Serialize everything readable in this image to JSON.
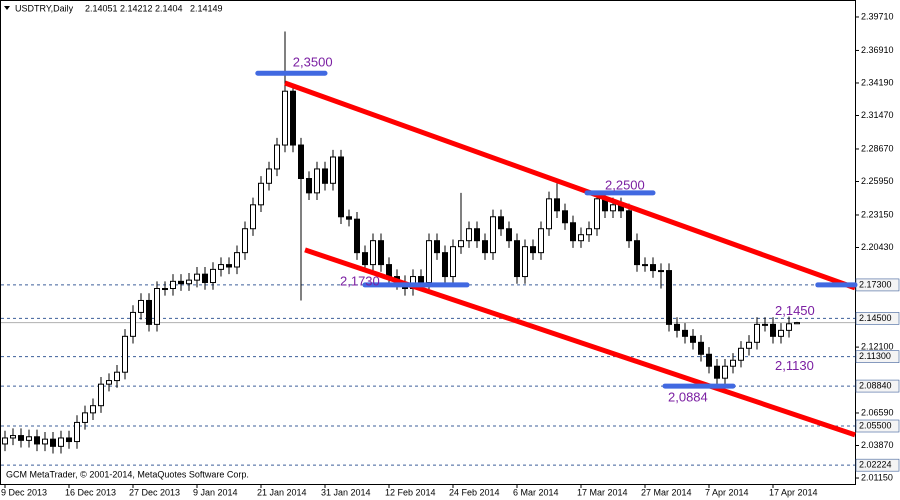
{
  "chart_data": {
    "type": "candlestick",
    "title": "USDTRY,Daily",
    "footer": "GCM MetaTrader, © 2001-2014, MetaQuotes Software Corp.",
    "categories": [
      "9 Dec 2013",
      null,
      null,
      null,
      null,
      null,
      null,
      null,
      "16 Dec 2013",
      null,
      null,
      null,
      null,
      null,
      null,
      null,
      "27 Dec 2013",
      null,
      null,
      null,
      null,
      null,
      null,
      null,
      "9 Jan 2014",
      null,
      null,
      null,
      null,
      null,
      null,
      null,
      "21 Jan 2014",
      null,
      null,
      null,
      null,
      null,
      null,
      null,
      "31 Jan 2014",
      null,
      null,
      null,
      null,
      null,
      null,
      null,
      "12 Feb 2014",
      null,
      null,
      null,
      null,
      null,
      null,
      null,
      "24 Feb 2014",
      null,
      null,
      null,
      null,
      null,
      null,
      null,
      "6 Mar 2014",
      null,
      null,
      null,
      null,
      null,
      null,
      null,
      "17 Mar 2014",
      null,
      null,
      null,
      null,
      null,
      null,
      null,
      "27 Mar 2014",
      null,
      null,
      null,
      null,
      null,
      null,
      null,
      "7 Apr 2014",
      null,
      null,
      null,
      null,
      null,
      null,
      null,
      "17 Apr 2014",
      null,
      null,
      null
    ],
    "open": [
      2.04,
      2.045,
      2.047,
      2.043,
      2.046,
      2.04,
      2.044,
      2.038,
      2.045,
      2.042,
      2.058,
      2.066,
      2.072,
      2.09,
      2.093,
      2.1,
      2.13,
      2.15,
      2.16,
      2.14,
      2.17,
      2.17,
      2.176,
      2.174,
      2.177,
      2.182,
      2.175,
      2.186,
      2.19,
      2.188,
      2.2,
      2.22,
      2.24,
      2.258,
      2.27,
      2.29,
      2.335,
      2.29,
      2.262,
      2.25,
      2.27,
      2.258,
      2.28,
      2.23,
      2.228,
      2.2,
      2.19,
      2.21,
      2.19,
      2.18,
      2.175,
      2.17,
      2.18,
      2.175,
      2.21,
      2.2,
      2.18,
      2.205,
      2.21,
      2.22,
      2.21,
      2.2,
      2.23,
      2.22,
      2.21,
      2.18,
      2.205,
      2.2,
      2.22,
      2.245,
      2.235,
      2.225,
      2.21,
      2.215,
      2.22,
      2.245,
      2.235,
      2.24,
      2.235,
      2.21,
      2.19,
      2.19,
      2.185,
      2.185,
      2.14,
      2.135,
      2.13,
      2.125,
      2.115,
      2.105,
      2.095,
      2.105,
      2.11,
      2.12,
      2.125,
      2.14,
      2.14,
      2.13,
      2.135,
      2.14051
    ],
    "high": [
      2.051,
      2.053,
      2.053,
      2.052,
      2.052,
      2.05,
      2.05,
      2.051,
      2.051,
      2.064,
      2.072,
      2.078,
      2.096,
      2.099,
      2.106,
      2.136,
      2.156,
      2.166,
      2.166,
      2.176,
      2.176,
      2.182,
      2.182,
      2.183,
      2.188,
      2.188,
      2.192,
      2.196,
      2.196,
      2.206,
      2.226,
      2.246,
      2.264,
      2.276,
      2.296,
      2.385,
      2.341,
      2.296,
      2.268,
      2.276,
      2.276,
      2.286,
      2.286,
      2.236,
      2.234,
      2.206,
      2.216,
      2.216,
      2.196,
      2.186,
      2.181,
      2.186,
      2.186,
      2.216,
      2.216,
      2.206,
      2.211,
      2.25,
      2.226,
      2.226,
      2.216,
      2.236,
      2.236,
      2.226,
      2.216,
      2.211,
      2.211,
      2.226,
      2.251,
      2.258,
      2.241,
      2.231,
      2.221,
      2.226,
      2.251,
      2.251,
      2.246,
      2.246,
      2.241,
      2.216,
      2.196,
      2.196,
      2.191,
      2.191,
      2.146,
      2.141,
      2.136,
      2.131,
      2.121,
      2.111,
      2.111,
      2.116,
      2.126,
      2.131,
      2.146,
      2.146,
      2.146,
      2.141,
      2.1465,
      2.14212
    ],
    "low": [
      2.034,
      2.039,
      2.037,
      2.037,
      2.034,
      2.034,
      2.032,
      2.032,
      2.036,
      2.036,
      2.052,
      2.06,
      2.066,
      2.084,
      2.087,
      2.094,
      2.124,
      2.144,
      2.134,
      2.134,
      2.164,
      2.164,
      2.168,
      2.168,
      2.171,
      2.169,
      2.169,
      2.18,
      2.182,
      2.182,
      2.194,
      2.214,
      2.234,
      2.252,
      2.264,
      2.284,
      2.284,
      2.16,
      2.244,
      2.244,
      2.252,
      2.252,
      2.224,
      2.222,
      2.194,
      2.184,
      2.184,
      2.184,
      2.174,
      2.169,
      2.164,
      2.164,
      2.169,
      2.169,
      2.194,
      2.174,
      2.174,
      2.199,
      2.204,
      2.204,
      2.194,
      2.194,
      2.214,
      2.204,
      2.174,
      2.174,
      2.194,
      2.194,
      2.214,
      2.229,
      2.219,
      2.204,
      2.204,
      2.209,
      2.214,
      2.229,
      2.229,
      2.229,
      2.204,
      2.184,
      2.184,
      2.179,
      2.17,
      2.134,
      2.129,
      2.124,
      2.119,
      2.109,
      2.099,
      2.089,
      2.089,
      2.099,
      2.104,
      2.114,
      2.119,
      2.134,
      2.124,
      2.124,
      2.129,
      2.1404
    ],
    "close": [
      2.045,
      2.047,
      2.043,
      2.046,
      2.04,
      2.044,
      2.038,
      2.045,
      2.042,
      2.058,
      2.066,
      2.072,
      2.09,
      2.093,
      2.1,
      2.13,
      2.15,
      2.16,
      2.14,
      2.17,
      2.17,
      2.176,
      2.174,
      2.177,
      2.182,
      2.175,
      2.186,
      2.19,
      2.188,
      2.2,
      2.22,
      2.24,
      2.258,
      2.27,
      2.29,
      2.335,
      2.29,
      2.262,
      2.25,
      2.27,
      2.258,
      2.28,
      2.23,
      2.228,
      2.2,
      2.19,
      2.21,
      2.19,
      2.18,
      2.175,
      2.17,
      2.18,
      2.175,
      2.21,
      2.2,
      2.18,
      2.205,
      2.21,
      2.22,
      2.21,
      2.2,
      2.23,
      2.22,
      2.21,
      2.18,
      2.205,
      2.2,
      2.22,
      2.245,
      2.235,
      2.225,
      2.21,
      2.215,
      2.22,
      2.245,
      2.235,
      2.24,
      2.235,
      2.21,
      2.19,
      2.19,
      2.185,
      2.185,
      2.14,
      2.135,
      2.13,
      2.125,
      2.115,
      2.105,
      2.095,
      2.105,
      2.11,
      2.12,
      2.125,
      2.14,
      2.14,
      2.13,
      2.135,
      2.1405,
      2.14149
    ],
    "up_color": "#ffffff",
    "down_color": "#000000",
    "xlim": [
      -0.625,
      106.25
    ],
    "ylim": [
      2.0065,
      2.4113
    ],
    "yticks": [
      {
        "value": 2.3971,
        "label": "2.39710"
      },
      {
        "value": 2.3691,
        "label": "2.36910"
      },
      {
        "value": 2.3419,
        "label": "2.34190"
      },
      {
        "value": 2.3147,
        "label": "2.31470"
      },
      {
        "value": 2.2867,
        "label": "2.28670"
      },
      {
        "value": 2.2595,
        "label": "2.25950"
      },
      {
        "value": 2.2315,
        "label": "2.23150"
      },
      {
        "value": 2.2043,
        "label": "2.20430"
      },
      {
        "value": 2.121,
        "label": "2.12100"
      },
      {
        "value": 2.0659,
        "label": "2.06590"
      },
      {
        "value": 2.0387,
        "label": "2.03870"
      },
      {
        "value": 2.0115,
        "label": "2.01150"
      }
    ],
    "hlines": [
      {
        "value": 2.173,
        "label": "2.17300"
      },
      {
        "value": 2.145,
        "label": "2.14500"
      },
      {
        "value": 2.113,
        "label": "2.11300"
      },
      {
        "value": 2.0884,
        "label": "2.08840"
      },
      {
        "value": 2.055,
        "label": "2.05500"
      },
      {
        "value": 2.02224,
        "label": "2.02224"
      }
    ],
    "hline_color": "#3d5f9a",
    "trendlines": [
      {
        "color": "#ff0000",
        "x": [
          35,
          106.25
        ],
        "y": [
          2.3419,
          2.1705
        ]
      },
      {
        "color": "#ff0000",
        "x": [
          37.5,
          106.25
        ],
        "y": [
          2.2023,
          2.0476
        ]
      }
    ],
    "level_color": "#4169e1",
    "level_lines": [
      {
        "value": 2.35,
        "x": [
          31.6,
          40
        ]
      },
      {
        "value": 2.25,
        "x": [
          72.75,
          81
        ]
      },
      {
        "value": 2.173,
        "x": [
          45,
          57.75
        ]
      },
      {
        "value": 2.0884,
        "x": [
          82.5,
          91
        ]
      },
      {
        "value": 2.173,
        "x": [
          101.6,
          106.25
        ]
      }
    ],
    "level_texts": [
      {
        "text": "2,3500",
        "value": 2.35,
        "x": 31.6
      },
      {
        "text": "2,2500",
        "value": 2.25,
        "x": 72.75
      },
      {
        "text": "2,1730",
        "value": 2.173,
        "x": 45
      },
      {
        "text": "2,0884",
        "value": 2.0884,
        "x": 82.5
      },
      {
        "text": "2,1450",
        "value": 2.145,
        "x": 96
      },
      {
        "text": "2,1130",
        "value": 2.113,
        "x": 96
      }
    ],
    "text_color": "#7b1fa2"
  }
}
